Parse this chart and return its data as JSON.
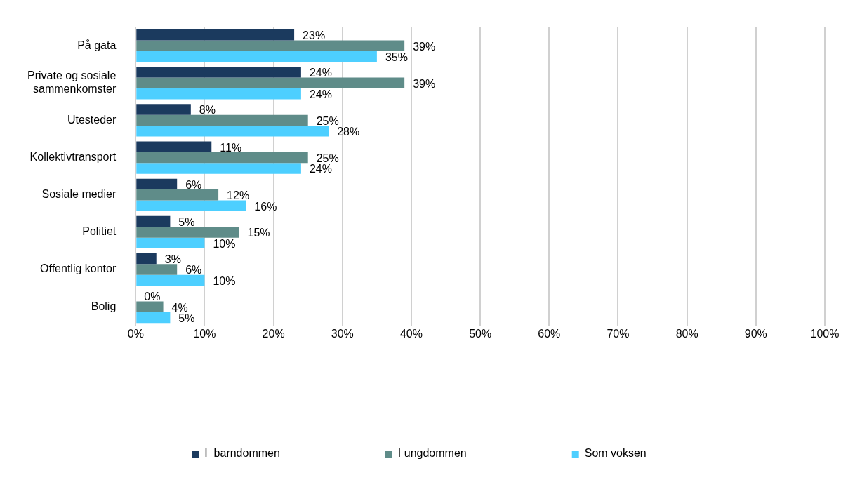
{
  "chart_data": {
    "type": "bar",
    "orientation": "horizontal",
    "categories": [
      "På gata",
      "Private og sosiale sammenkomster",
      "Utesteder",
      "Kollektivtransport",
      "Sosiale medier",
      "Politiet",
      "Offentlig kontor",
      "Bolig"
    ],
    "series": [
      {
        "name": "I  barndommen",
        "color": "#1b3a5e",
        "values": [
          23,
          24,
          8,
          11,
          6,
          5,
          3,
          0
        ],
        "value_labels": [
          "23%",
          "24%",
          "8%",
          "11%",
          "6%",
          "5%",
          "3%",
          "0%"
        ]
      },
      {
        "name": "I ungdommen",
        "color": "#5f8c89",
        "values": [
          39,
          39,
          25,
          25,
          12,
          15,
          6,
          4
        ],
        "value_labels": [
          "39%",
          "39%",
          "25%",
          "25%",
          "12%",
          "15%",
          "6%",
          "4%"
        ]
      },
      {
        "name": "Som voksen",
        "color": "#4dcfff",
        "values": [
          35,
          24,
          28,
          24,
          16,
          10,
          10,
          5
        ],
        "value_labels": [
          "35%",
          "24%",
          "28%",
          "24%",
          "16%",
          "10%",
          "10%",
          "5%"
        ]
      }
    ],
    "xlim": [
      0,
      100
    ],
    "xticks": [
      {
        "value": 0,
        "label": "0%"
      },
      {
        "value": 10,
        "label": "10%"
      },
      {
        "value": 20,
        "label": "20%"
      },
      {
        "value": 30,
        "label": "30%"
      },
      {
        "value": 40,
        "label": "40%"
      },
      {
        "value": 50,
        "label": "50%"
      },
      {
        "value": 60,
        "label": "60%"
      },
      {
        "value": 70,
        "label": "70%"
      },
      {
        "value": 80,
        "label": "80%"
      },
      {
        "value": 90,
        "label": "90%"
      },
      {
        "value": 100,
        "label": "100%"
      }
    ],
    "grid": "x",
    "legend": "bottom"
  }
}
